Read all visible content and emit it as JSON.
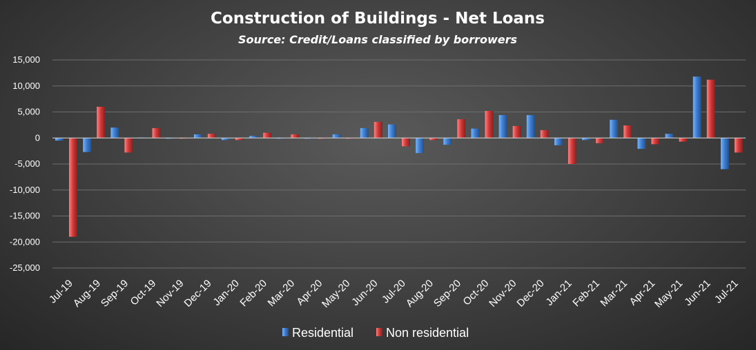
{
  "chart_data": {
    "type": "bar",
    "title": "Construction of Buildings - Net Loans",
    "subtitle": "Source: Credit/Loans classified by borrowers",
    "xlabel": "",
    "ylabel": "",
    "ylim": [
      -25000,
      15000
    ],
    "yticks": [
      15000,
      10000,
      5000,
      0,
      -5000,
      -10000,
      -15000,
      -20000,
      -25000
    ],
    "ytick_labels": [
      "15,000",
      "10,000",
      "5,000",
      "0",
      "-5,000",
      "-10,000",
      "-15,000",
      "-20,000",
      "-25,000"
    ],
    "grid": true,
    "legend_position": "bottom",
    "categories": [
      "Jul-19",
      "Aug-19",
      "Sep-19",
      "Oct-19",
      "Nov-19",
      "Dec-19",
      "Jan-20",
      "Feb-20",
      "Mar-20",
      "Apr-20",
      "May-20",
      "Jun-20",
      "Jul-20",
      "Aug-20",
      "Sep-20",
      "Oct-20",
      "Nov-20",
      "Dec-20",
      "Jan-21",
      "Feb-21",
      "Mar-21",
      "Apr-21",
      "May-21",
      "Jun-21",
      "Jul-21"
    ],
    "series": [
      {
        "name": "Residential",
        "color": "#3f7fd0",
        "values": [
          -500,
          -2700,
          2000,
          100,
          -100,
          700,
          -400,
          400,
          -100,
          -100,
          700,
          1900,
          2600,
          -2900,
          -1300,
          1800,
          4400,
          4400,
          -1400,
          -400,
          3500,
          -2100,
          800,
          11800,
          -6000
        ]
      },
      {
        "name": "Non residential",
        "color": "#d33b3b",
        "values": [
          -19000,
          6000,
          -2800,
          1900,
          -100,
          800,
          -400,
          1000,
          700,
          -100,
          -100,
          3100,
          -1600,
          -400,
          3600,
          5200,
          2300,
          1500,
          -5000,
          -1000,
          2400,
          -1200,
          -700,
          11200,
          -2800
        ]
      }
    ]
  }
}
